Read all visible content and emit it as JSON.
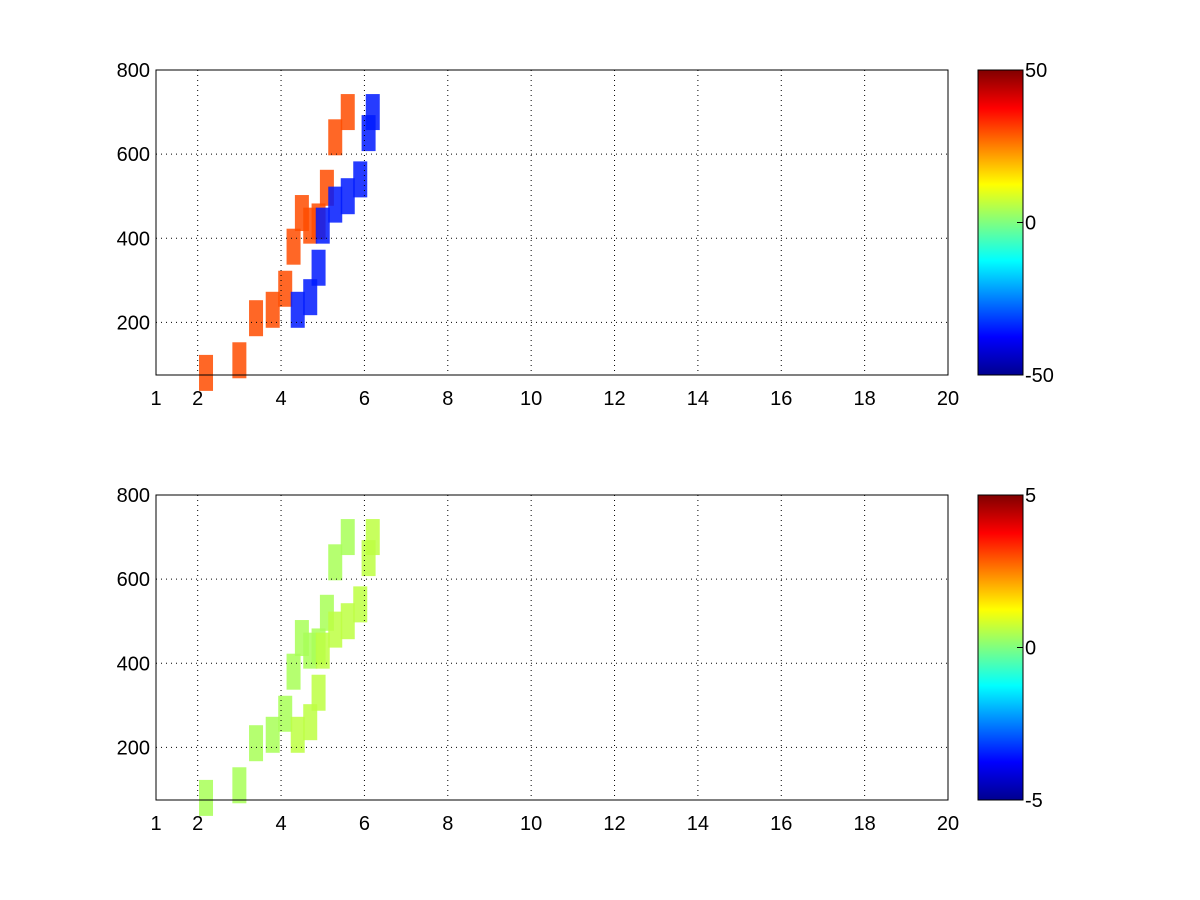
{
  "chart_data": [
    {
      "type": "heatmap",
      "title": "",
      "xlabel": "",
      "ylabel": "",
      "xlim": [
        1,
        20
      ],
      "ylim": [
        75,
        800
      ],
      "xticks": [
        "1",
        "2",
        "4",
        "6",
        "8",
        "10",
        "12",
        "14",
        "16",
        "18",
        "20"
      ],
      "yticks": [
        "200",
        "400",
        "600",
        "800"
      ],
      "grid": true,
      "colormap": "jet",
      "clim": [
        -50,
        50
      ],
      "colorbar_ticks": [
        "-50",
        "0",
        "50"
      ],
      "ridges": [
        {
          "name": "",
          "value": 30,
          "points": [
            [
              2.2,
              80
            ],
            [
              3.0,
              110
            ],
            [
              3.4,
              210
            ],
            [
              3.8,
              230
            ],
            [
              4.1,
              280
            ],
            [
              4.3,
              380
            ],
            [
              4.5,
              460
            ],
            [
              4.7,
              430
            ],
            [
              4.9,
              440
            ],
            [
              5.1,
              520
            ],
            [
              5.3,
              640
            ],
            [
              5.6,
              700
            ]
          ]
        },
        {
          "name": "",
          "value": -35,
          "points": [
            [
              4.4,
              230
            ],
            [
              4.7,
              260
            ],
            [
              4.9,
              330
            ],
            [
              5.0,
              430
            ],
            [
              5.3,
              480
            ],
            [
              5.6,
              500
            ],
            [
              5.9,
              540
            ],
            [
              6.1,
              650
            ],
            [
              6.2,
              700
            ]
          ]
        }
      ]
    },
    {
      "type": "heatmap",
      "title": "",
      "xlabel": "",
      "ylabel": "",
      "xlim": [
        1,
        20
      ],
      "ylim": [
        75,
        800
      ],
      "xticks": [
        "1",
        "2",
        "4",
        "6",
        "8",
        "10",
        "12",
        "14",
        "16",
        "18",
        "20"
      ],
      "yticks": [
        "200",
        "400",
        "600",
        "800"
      ],
      "grid": true,
      "colormap": "jet",
      "clim": [
        -5,
        5
      ],
      "colorbar_ticks": [
        "-5",
        "0",
        "5"
      ],
      "ridges": [
        {
          "name": "",
          "value": 0.4,
          "points": [
            [
              2.2,
              80
            ],
            [
              3.0,
              110
            ],
            [
              3.4,
              210
            ],
            [
              3.8,
              230
            ],
            [
              4.1,
              280
            ],
            [
              4.3,
              380
            ],
            [
              4.5,
              460
            ],
            [
              4.7,
              430
            ],
            [
              4.9,
              440
            ],
            [
              5.1,
              520
            ],
            [
              5.3,
              640
            ],
            [
              5.6,
              700
            ]
          ]
        },
        {
          "name": "",
          "value": 0.6,
          "points": [
            [
              4.4,
              230
            ],
            [
              4.7,
              260
            ],
            [
              4.9,
              330
            ],
            [
              5.0,
              430
            ],
            [
              5.3,
              480
            ],
            [
              5.6,
              500
            ],
            [
              5.9,
              540
            ],
            [
              6.1,
              650
            ],
            [
              6.2,
              700
            ]
          ]
        }
      ]
    }
  ]
}
